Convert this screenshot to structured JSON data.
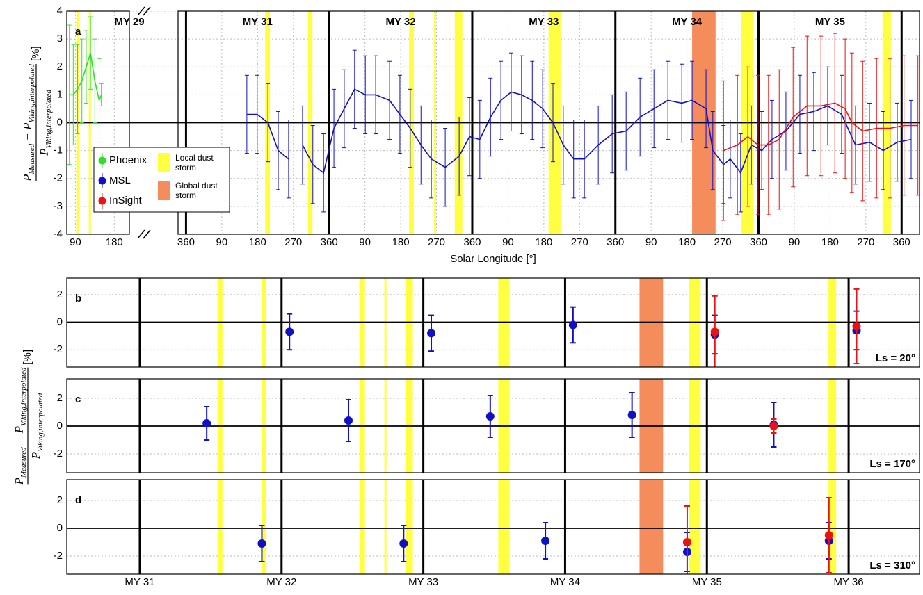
{
  "chart_data": [
    {
      "type": "line",
      "panel_label": "a",
      "xlabel": "Solar Longitude [°]",
      "ylabel_numerator": [
        "P",
        "Measured",
        " − P",
        "Viking,interpolated"
      ],
      "ylabel_denominator": [
        "P",
        "Viking,interpolated"
      ],
      "ylabel_unit": "[%]",
      "xlim": [
        70,
        2565
      ],
      "xbreak": [
        215,
        700
      ],
      "ylim": [
        -4,
        4
      ],
      "yticks": [
        -4,
        -3,
        -2,
        -1,
        0,
        1,
        2,
        3,
        4
      ],
      "grid": true,
      "xticks": [
        90,
        180,
        {
          "value": 720,
          "label": "360"
        },
        {
          "value": 810,
          "label": "90"
        },
        {
          "value": 900,
          "label": "180"
        },
        {
          "value": 990,
          "label": "270"
        },
        {
          "value": 1080,
          "label": "360"
        },
        {
          "value": 1170,
          "label": "90"
        },
        {
          "value": 1260,
          "label": "180"
        },
        {
          "value": 1350,
          "label": "270"
        },
        {
          "value": 1440,
          "label": "360"
        },
        {
          "value": 1530,
          "label": "90"
        },
        {
          "value": 1620,
          "label": "180"
        },
        {
          "value": 1710,
          "label": "270"
        },
        {
          "value": 1800,
          "label": "360"
        },
        {
          "value": 1890,
          "label": "90"
        },
        {
          "value": 1980,
          "label": "180"
        },
        {
          "value": 2070,
          "label": "270"
        },
        {
          "value": 2160,
          "label": "360"
        },
        {
          "value": 2250,
          "label": "90"
        },
        {
          "value": 2340,
          "label": "180"
        },
        {
          "value": 2430,
          "label": "270"
        },
        {
          "value": 2520,
          "label": "360"
        }
      ],
      "year_lines": [
        720,
        1080,
        1440,
        1800,
        2160,
        2520
      ],
      "year_labels": [
        "MY 29",
        "MY 31",
        "MY 32",
        "MY 33",
        "MY 34",
        "MY 35"
      ],
      "local_storms": [
        [
          92,
          99
        ],
        [
          121,
          126
        ],
        [
          919,
          931
        ],
        [
          1027,
          1038
        ],
        [
          1281,
          1293
        ],
        [
          1344,
          1349
        ],
        [
          1396,
          1415
        ],
        [
          1632,
          1662
        ],
        [
          2117,
          2147
        ],
        [
          2472,
          2493
        ]
      ],
      "global_storms": [
        [
          1993,
          2052
        ]
      ],
      "local_storm_color": "#ffff40",
      "global_storm_color": "#f58c5c",
      "legend": "lower left",
      "local_storm_label": "Local dust storm",
      "global_storm_label": "Global dust storm",
      "series": [
        {
          "name": "Phoenix",
          "color": "#2ee02e",
          "x": [
            76,
            85,
            95,
            105,
            115,
            125,
            135,
            145,
            150
          ],
          "values": [
            1,
            1,
            1.2,
            1.5,
            2,
            2.5,
            1.5,
            0.8,
            1
          ],
          "errors": [
            2.5,
            1.8,
            1.6,
            1.5,
            1.3,
            1.3,
            1.5,
            1.5,
            0.4
          ]
        },
        {
          "name": "MSL",
          "color": "#1010c8",
          "x": [
            873,
            899,
            926,
            952,
            978,
            995,
            1013,
            1039,
            1066,
            1092,
            1118,
            1144,
            1171,
            1197,
            1232,
            1258,
            1284,
            1311,
            1337,
            1372,
            1407,
            1433,
            1459,
            1486,
            1512,
            1538,
            1564,
            1591,
            1617,
            1643,
            1669,
            1695,
            1722,
            1757,
            1792,
            1827,
            1862,
            1897,
            1932,
            1967,
            1993,
            2028,
            2045,
            2072,
            2089,
            2115,
            2142,
            2168,
            2194,
            2229,
            2264,
            2299,
            2334,
            2369,
            2404,
            2439,
            2474,
            2509,
            2544
          ],
          "values": [
            0.3,
            0.3,
            0,
            -1,
            -1.3,
            null,
            -0.8,
            -1.5,
            -1.8,
            -0.2,
            0.5,
            1.2,
            1.0,
            1.0,
            0.8,
            0.3,
            -0.2,
            -0.8,
            -1.3,
            -1.6,
            -1.2,
            -0.5,
            -0.6,
            0.2,
            0.8,
            1.1,
            1.0,
            0.8,
            0.5,
            0,
            -0.8,
            -1.3,
            -1.3,
            -0.8,
            -0.4,
            -0.3,
            0.2,
            0.5,
            0.8,
            0.7,
            0.8,
            0.5,
            -1.0,
            -1.5,
            -1.3,
            -1.8,
            -0.8,
            -1.0,
            -0.6,
            -0.3,
            0.3,
            0.4,
            0.6,
            0.3,
            -0.8,
            -0.7,
            -1.0,
            -0.7,
            -0.6
          ],
          "errors": [
            1.4,
            1.4,
            1.4,
            1.4,
            1.4,
            null,
            1.4,
            1.4,
            1.4,
            1.4,
            1.4,
            1.4,
            1.4,
            1.4,
            1.4,
            1.4,
            1.4,
            1.4,
            1.4,
            1.4,
            1.4,
            1.4,
            1.4,
            1.4,
            1.4,
            1.4,
            1.4,
            1.4,
            1.4,
            1.4,
            1.4,
            1.4,
            1.4,
            1.4,
            1.4,
            1.4,
            1.4,
            1.4,
            1.4,
            1.4,
            1.4,
            1.4,
            1.4,
            1.4,
            1.4,
            1.4,
            1.4,
            1.4,
            1.4,
            1.4,
            1.4,
            1.4,
            1.4,
            1.4,
            1.4,
            1.4,
            1.4,
            1.4,
            1.4
          ]
        },
        {
          "name": "InSight",
          "color": "#ee1111",
          "x": [
            2072,
            2107,
            2133,
            2159,
            2185,
            2212,
            2247,
            2282,
            2317,
            2352,
            2378,
            2395,
            2422,
            2457,
            2491,
            2526,
            2561
          ],
          "values": [
            -1.0,
            -0.8,
            -0.5,
            -0.8,
            -0.8,
            -0.6,
            0.2,
            0.6,
            0.6,
            0.7,
            0.5,
            0,
            -0.3,
            -0.2,
            -0.2,
            -0.1,
            -0.1
          ],
          "errors": [
            2.5,
            2.5,
            2.5,
            2.5,
            2.5,
            2.5,
            2.5,
            2.5,
            2.5,
            2.5,
            2.5,
            2.5,
            2.5,
            2.5,
            2.5,
            2.5,
            2.5
          ]
        }
      ]
    },
    {
      "type": "scatter",
      "panel_label": "b",
      "annotation": "Ls = 20°",
      "xlim": [
        30.485,
        36.5
      ],
      "ylim": [
        -3.25,
        3.2
      ],
      "yticks": [
        -2,
        0,
        2
      ],
      "grid": true,
      "year_lines": [
        31,
        32,
        33,
        34,
        35,
        36
      ],
      "local_storms": [
        [
          31.549,
          31.583
        ],
        [
          31.858,
          31.892
        ],
        [
          32.549,
          32.588
        ],
        [
          32.725,
          32.74
        ],
        [
          32.873,
          32.926
        ],
        [
          33.529,
          33.608
        ],
        [
          34.873,
          34.956
        ],
        [
          35.858,
          35.912
        ]
      ],
      "global_storms": [
        [
          34.525,
          34.691
        ]
      ],
      "local_storm_color": "#ffff40",
      "global_storm_color": "#f58c5c",
      "series": [
        {
          "name": "MSL",
          "color": "#1010c8",
          "x": [
            32.056,
            33.056,
            34.056,
            35.056,
            36.056
          ],
          "values": [
            -0.7,
            -0.8,
            -0.2,
            -0.9,
            -0.6
          ],
          "errors": [
            1.3,
            1.3,
            1.3,
            1.4,
            1.4
          ]
        },
        {
          "name": "InSight",
          "color": "#ee1111",
          "x": [
            35.056,
            36.056
          ],
          "values": [
            -0.7,
            -0.3
          ],
          "errors": [
            2.6,
            2.7
          ]
        }
      ]
    },
    {
      "type": "scatter",
      "panel_label": "c",
      "annotation": "Ls = 170°",
      "ylabel_numerator": [
        "P",
        "Measured",
        " − P",
        "Viking,interpolated"
      ],
      "ylabel_denominator": [
        "P",
        "Viking,interpolated"
      ],
      "ylabel_unit": "[%]",
      "xlim": [
        30.485,
        36.5
      ],
      "ylim": [
        -3.35,
        3.4
      ],
      "yticks": [
        -2,
        0,
        2
      ],
      "grid": true,
      "year_lines": [
        31,
        32,
        33,
        34,
        35,
        36
      ],
      "local_storms": [
        [
          31.549,
          31.583
        ],
        [
          31.858,
          31.892
        ],
        [
          32.549,
          32.588
        ],
        [
          32.725,
          32.74
        ],
        [
          32.873,
          32.926
        ],
        [
          33.529,
          33.608
        ],
        [
          34.873,
          34.956
        ],
        [
          35.858,
          35.912
        ]
      ],
      "global_storms": [
        [
          34.525,
          34.691
        ]
      ],
      "local_storm_color": "#ffff40",
      "global_storm_color": "#f58c5c",
      "series": [
        {
          "name": "MSL",
          "color": "#1010c8",
          "x": [
            31.472,
            32.472,
            33.472,
            34.472,
            35.472
          ],
          "values": [
            0.2,
            0.4,
            0.7,
            0.8,
            0.1
          ],
          "errors": [
            1.2,
            1.5,
            1.5,
            1.6,
            1.6
          ]
        },
        {
          "name": "InSight",
          "color": "#ee1111",
          "x": [
            35.472
          ],
          "values": [
            0
          ],
          "errors": [
            0.5
          ]
        }
      ]
    },
    {
      "type": "scatter",
      "panel_label": "d",
      "annotation": "Ls = 310°",
      "xlim": [
        30.485,
        36.5
      ],
      "ylim": [
        -3.3,
        3.5
      ],
      "yticks": [
        -2,
        0,
        2
      ],
      "grid": true,
      "xticks": [
        {
          "value": 31,
          "label": "MY 31"
        },
        {
          "value": 32,
          "label": "MY 32"
        },
        {
          "value": 33,
          "label": "MY 33"
        },
        {
          "value": 34,
          "label": "MY 34"
        },
        {
          "value": 35,
          "label": "MY 35"
        },
        {
          "value": 36,
          "label": "MY 36"
        }
      ],
      "year_lines": [
        31,
        32,
        33,
        34,
        35,
        36
      ],
      "local_storms": [
        [
          31.549,
          31.583
        ],
        [
          31.858,
          31.892
        ],
        [
          32.549,
          32.588
        ],
        [
          32.725,
          32.74
        ],
        [
          32.873,
          32.926
        ],
        [
          33.529,
          33.608
        ],
        [
          34.873,
          34.956
        ],
        [
          35.858,
          35.912
        ]
      ],
      "global_storms": [
        [
          34.525,
          34.691
        ]
      ],
      "local_storm_color": "#ffff40",
      "global_storm_color": "#f58c5c",
      "series": [
        {
          "name": "MSL",
          "color": "#1010c8",
          "x": [
            31.861,
            32.861,
            33.861,
            34.861,
            35.861
          ],
          "values": [
            -1.1,
            -1.1,
            -0.9,
            -1.7,
            -0.9
          ],
          "errors": [
            1.3,
            1.3,
            1.3,
            1.4,
            1.3
          ]
        },
        {
          "name": "InSight",
          "color": "#ee1111",
          "x": [
            34.861,
            35.861
          ],
          "values": [
            -1.0,
            -0.5
          ],
          "errors": [
            2.6,
            2.7
          ]
        }
      ]
    }
  ]
}
